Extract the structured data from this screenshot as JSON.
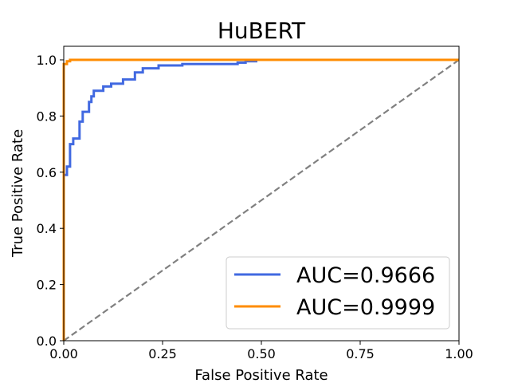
{
  "chart_data": {
    "type": "line",
    "title": "HuBERT",
    "xlabel": "False Positive Rate",
    "ylabel": "True Positive Rate",
    "xlim": [
      0.0,
      1.0
    ],
    "ylim": [
      0.0,
      1.0
    ],
    "grid": false,
    "legend_position": "lower-right",
    "x_ticks": [
      {
        "value": 0.0,
        "label": "0.00"
      },
      {
        "value": 0.25,
        "label": "0.25"
      },
      {
        "value": 0.5,
        "label": "0.50"
      },
      {
        "value": 0.75,
        "label": "0.75"
      },
      {
        "value": 1.0,
        "label": "1.00"
      }
    ],
    "y_ticks": [
      {
        "value": 0.0,
        "label": "0.0"
      },
      {
        "value": 0.2,
        "label": "0.2"
      },
      {
        "value": 0.4,
        "label": "0.4"
      },
      {
        "value": 0.6,
        "label": "0.6"
      },
      {
        "value": 0.8,
        "label": "0.8"
      },
      {
        "value": 1.0,
        "label": "1.0"
      }
    ],
    "series": [
      {
        "name": "AUC=0.9666",
        "color": "#4169e1",
        "x": [
          0.0,
          0.0,
          0.008,
          0.008,
          0.016,
          0.016,
          0.024,
          0.024,
          0.04,
          0.04,
          0.048,
          0.048,
          0.064,
          0.064,
          0.07,
          0.07,
          0.076,
          0.076,
          0.1,
          0.1,
          0.12,
          0.12,
          0.15,
          0.15,
          0.18,
          0.18,
          0.2,
          0.2,
          0.24,
          0.24,
          0.3,
          0.3,
          0.44,
          0.44,
          0.46,
          0.46,
          0.49
        ],
        "y": [
          0.0,
          0.59,
          0.59,
          0.62,
          0.62,
          0.7,
          0.7,
          0.72,
          0.72,
          0.78,
          0.78,
          0.815,
          0.815,
          0.85,
          0.85,
          0.87,
          0.87,
          0.89,
          0.89,
          0.905,
          0.905,
          0.915,
          0.915,
          0.93,
          0.93,
          0.955,
          0.955,
          0.97,
          0.97,
          0.98,
          0.98,
          0.985,
          0.985,
          0.99,
          0.99,
          0.995,
          0.995
        ]
      },
      {
        "name": "AUC=0.9999",
        "color": "#ff8c00",
        "x": [
          0.0,
          0.0,
          0.008,
          0.008,
          0.016,
          0.016,
          1.0
        ],
        "y": [
          0.0,
          0.985,
          0.985,
          0.995,
          0.995,
          1.0,
          1.0
        ]
      }
    ],
    "reference_line": {
      "x": [
        0.0,
        1.0
      ],
      "y": [
        0.0,
        1.0
      ],
      "color": "#808080"
    }
  }
}
